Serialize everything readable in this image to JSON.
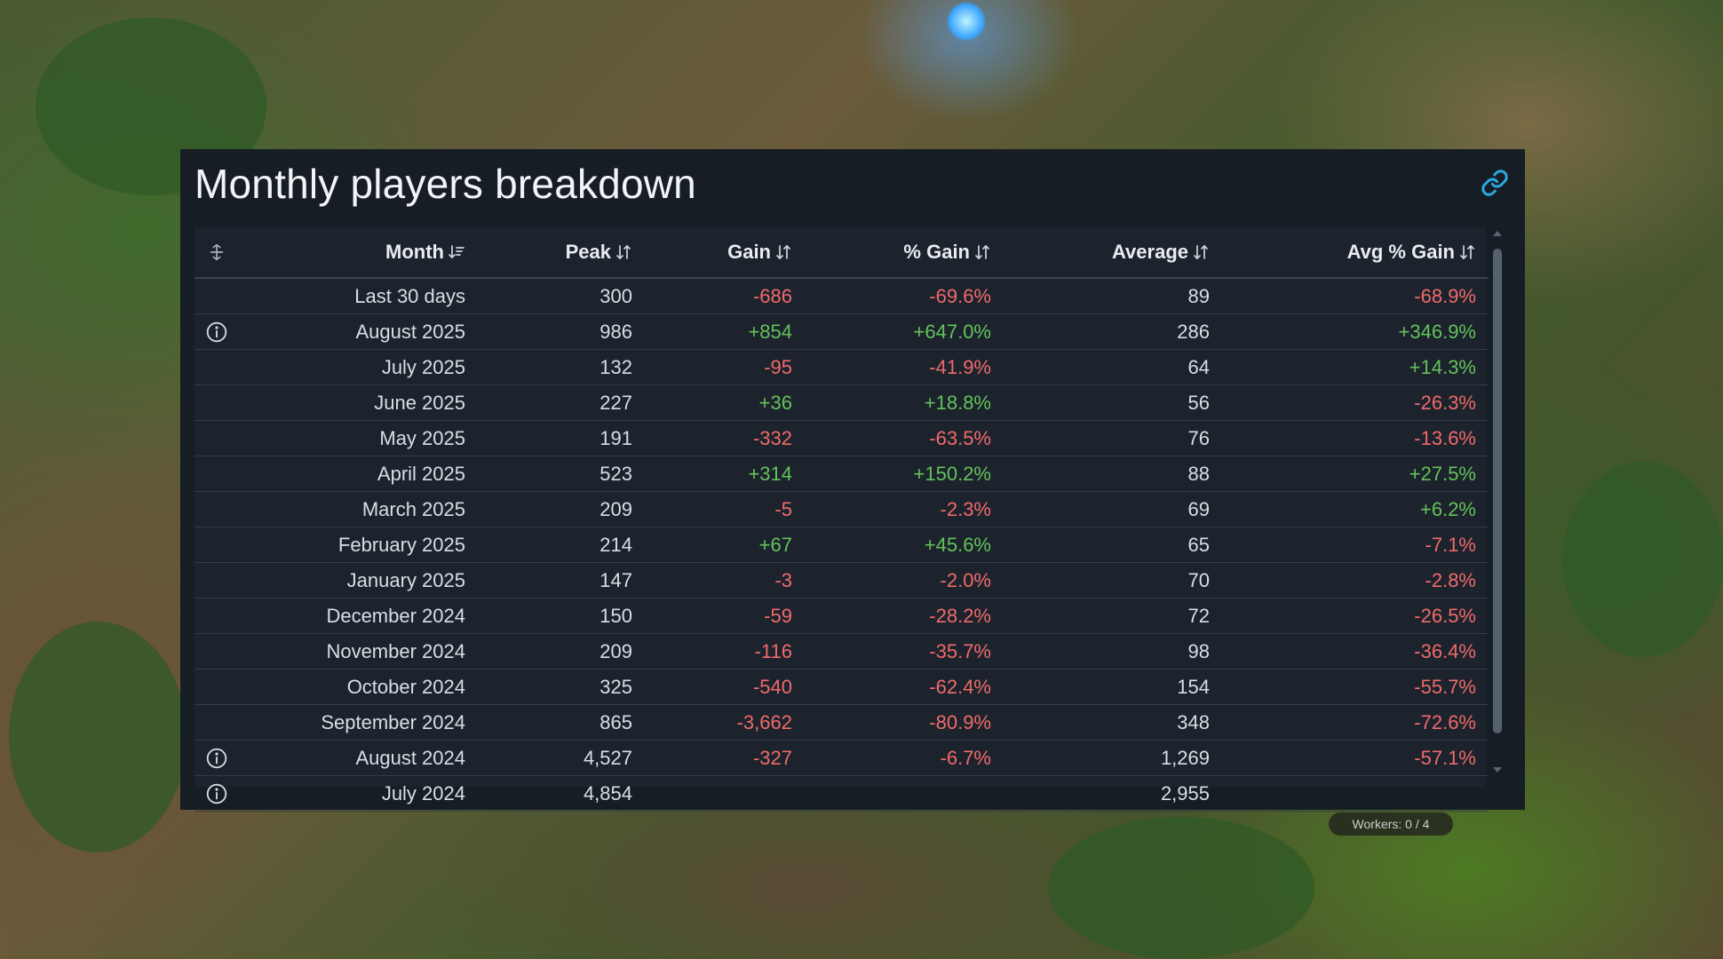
{
  "panel": {
    "title": "Monthly players breakdown",
    "link_icon": "link-icon"
  },
  "table": {
    "headers": {
      "month": "Month",
      "peak": "Peak",
      "gain": "Gain",
      "pct_gain": "% Gain",
      "average": "Average",
      "avg_pct_gain": "Avg % Gain"
    },
    "rows": [
      {
        "month": "Last 30 days",
        "peak": "300",
        "gain": "-686",
        "pct_gain": "-69.6%",
        "average": "89",
        "avg_pct_gain": "-68.9%",
        "info": false
      },
      {
        "month": "August 2025",
        "peak": "986",
        "gain": "+854",
        "pct_gain": "+647.0%",
        "average": "286",
        "avg_pct_gain": "+346.9%",
        "info": true
      },
      {
        "month": "July 2025",
        "peak": "132",
        "gain": "-95",
        "pct_gain": "-41.9%",
        "average": "64",
        "avg_pct_gain": "+14.3%",
        "info": false
      },
      {
        "month": "June 2025",
        "peak": "227",
        "gain": "+36",
        "pct_gain": "+18.8%",
        "average": "56",
        "avg_pct_gain": "-26.3%",
        "info": false
      },
      {
        "month": "May 2025",
        "peak": "191",
        "gain": "-332",
        "pct_gain": "-63.5%",
        "average": "76",
        "avg_pct_gain": "-13.6%",
        "info": false
      },
      {
        "month": "April 2025",
        "peak": "523",
        "gain": "+314",
        "pct_gain": "+150.2%",
        "average": "88",
        "avg_pct_gain": "+27.5%",
        "info": false
      },
      {
        "month": "March 2025",
        "peak": "209",
        "gain": "-5",
        "pct_gain": "-2.3%",
        "average": "69",
        "avg_pct_gain": "+6.2%",
        "info": false
      },
      {
        "month": "February 2025",
        "peak": "214",
        "gain": "+67",
        "pct_gain": "+45.6%",
        "average": "65",
        "avg_pct_gain": "-7.1%",
        "info": false
      },
      {
        "month": "January 2025",
        "peak": "147",
        "gain": "-3",
        "pct_gain": "-2.0%",
        "average": "70",
        "avg_pct_gain": "-2.8%",
        "info": false
      },
      {
        "month": "December 2024",
        "peak": "150",
        "gain": "-59",
        "pct_gain": "-28.2%",
        "average": "72",
        "avg_pct_gain": "-26.5%",
        "info": false
      },
      {
        "month": "November 2024",
        "peak": "209",
        "gain": "-116",
        "pct_gain": "-35.7%",
        "average": "98",
        "avg_pct_gain": "-36.4%",
        "info": false
      },
      {
        "month": "October 2024",
        "peak": "325",
        "gain": "-540",
        "pct_gain": "-62.4%",
        "average": "154",
        "avg_pct_gain": "-55.7%",
        "info": false
      },
      {
        "month": "September 2024",
        "peak": "865",
        "gain": "-3,662",
        "pct_gain": "-80.9%",
        "average": "348",
        "avg_pct_gain": "-72.6%",
        "info": false
      },
      {
        "month": "August 2024",
        "peak": "4,527",
        "gain": "-327",
        "pct_gain": "-6.7%",
        "average": "1,269",
        "avg_pct_gain": "-57.1%",
        "info": true
      },
      {
        "month": "July 2024",
        "peak": "4,854",
        "gain": "",
        "pct_gain": "",
        "average": "2,955",
        "avg_pct_gain": "",
        "info": true
      }
    ]
  },
  "colors": {
    "panel_bg": "#171d25",
    "positive": "#64c25a",
    "negative": "#f06a6a",
    "link_accent": "#2aa9e0"
  },
  "background": {
    "hud_text": "Workers: 0 / 4"
  }
}
